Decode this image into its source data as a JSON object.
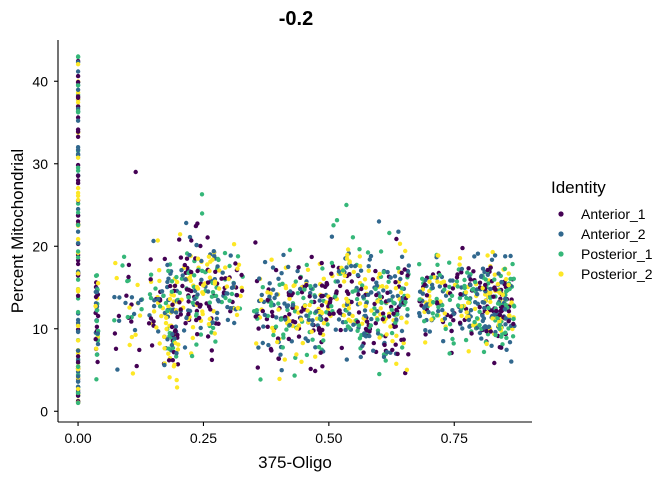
{
  "chart_data": {
    "type": "scatter",
    "title": "-0.2",
    "xlabel": "375-Oligo",
    "ylabel": "Percent Mitochondrial",
    "xlim": [
      -0.04,
      0.905
    ],
    "ylim": [
      -1.3,
      45
    ],
    "x_ticks": [
      0.0,
      0.25,
      0.5,
      0.75
    ],
    "x_tick_labels": [
      "0.00",
      "0.25",
      "0.50",
      "0.75"
    ],
    "y_ticks": [
      0,
      10,
      20,
      30,
      40
    ],
    "y_tick_labels": [
      "0",
      "10",
      "20",
      "30",
      "40"
    ],
    "grid": false,
    "legend_title": "Identity",
    "legend_position": "right",
    "series": [
      {
        "name": "Anterior_1",
        "color": "#440154"
      },
      {
        "name": "Anterior_2",
        "color": "#31688E"
      },
      {
        "name": "Posterior_1",
        "color": "#35B779"
      },
      {
        "name": "Posterior_2",
        "color": "#FDE725"
      }
    ],
    "clusters": [
      {
        "x": [
          0.0,
          0.0
        ],
        "y": [
          1,
          43
        ],
        "n": 140
      },
      {
        "x": [
          0.035,
          0.04
        ],
        "y": [
          2,
          22.5
        ],
        "n": 45
      },
      {
        "x": [
          0.07,
          0.13
        ],
        "y": [
          1.5,
          23
        ],
        "n": 40
      },
      {
        "x": [
          0.14,
          0.17
        ],
        "y": [
          5,
          22
        ],
        "n": 35
      },
      {
        "x": [
          0.17,
          0.2
        ],
        "y": [
          1,
          22
        ],
        "n": 100
      },
      {
        "x": [
          0.2,
          0.28
        ],
        "y": [
          3,
          26
        ],
        "n": 170
      },
      {
        "x": [
          0.28,
          0.33
        ],
        "y": [
          8,
          21
        ],
        "n": 55
      },
      {
        "x": [
          0.35,
          0.42
        ],
        "y": [
          2,
          21
        ],
        "n": 100
      },
      {
        "x": [
          0.42,
          0.5
        ],
        "y": [
          3,
          21
        ],
        "n": 150
      },
      {
        "x": [
          0.5,
          0.56
        ],
        "y": [
          5,
          25
        ],
        "n": 100
      },
      {
        "x": [
          0.56,
          0.66
        ],
        "y": [
          2,
          23
        ],
        "n": 210
      },
      {
        "x": [
          0.68,
          0.74
        ],
        "y": [
          7,
          20
        ],
        "n": 90
      },
      {
        "x": [
          0.74,
          0.8
        ],
        "y": [
          5,
          21
        ],
        "n": 110
      },
      {
        "x": [
          0.8,
          0.87
        ],
        "y": [
          4.5,
          21
        ],
        "n": 220
      }
    ],
    "isolated_points": [
      {
        "x": 0.115,
        "y": 29,
        "series": "Anterior_1"
      },
      {
        "x": 0.247,
        "y": 26.3,
        "series": "Posterior_1"
      },
      {
        "x": 0.535,
        "y": 25,
        "series": "Posterior_1"
      },
      {
        "x": 0.6,
        "y": 23,
        "series": "Anterior_2"
      },
      {
        "x": 0.0,
        "y": 43,
        "series": "Posterior_1"
      },
      {
        "x": 0.0,
        "y": 39.5,
        "series": "Posterior_1"
      },
      {
        "x": 0.0,
        "y": 38,
        "series": "Anterior_1"
      }
    ]
  }
}
